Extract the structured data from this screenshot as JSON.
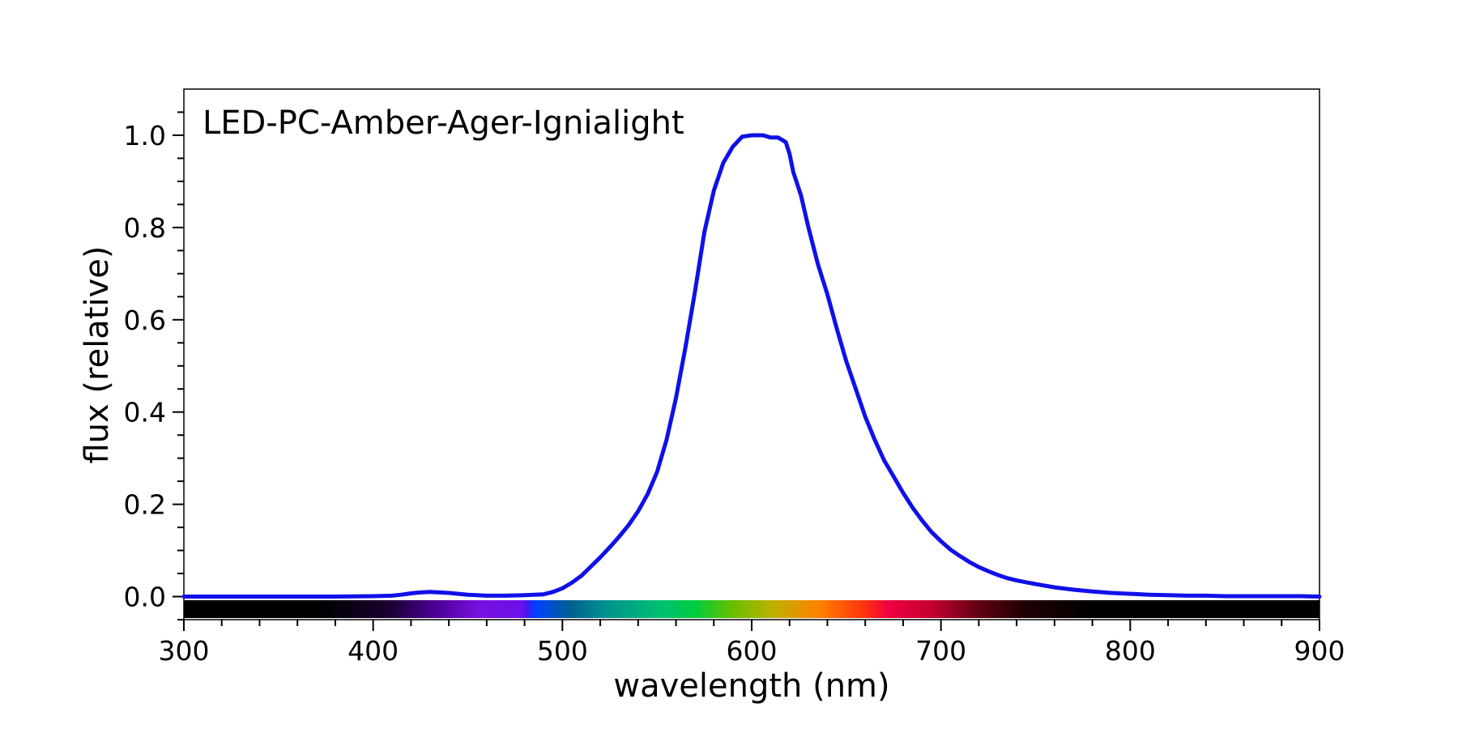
{
  "chart_data": {
    "type": "line",
    "title": "LED-PC-Amber-Ager-Ignialight",
    "xlabel": "wavelength (nm)",
    "ylabel": "flux (relative)",
    "xlim": [
      300,
      900
    ],
    "ylim": [
      -0.05,
      1.1
    ],
    "x_ticks": [
      300,
      400,
      500,
      600,
      700,
      800,
      900
    ],
    "x_tick_labels": [
      "300",
      "400",
      "500",
      "600",
      "700",
      "800",
      "900"
    ],
    "y_ticks": [
      0.0,
      0.2,
      0.4,
      0.6,
      0.8,
      1.0
    ],
    "y_tick_labels": [
      "0.0",
      "0.2",
      "0.4",
      "0.6",
      "0.8",
      "1.0"
    ],
    "grid": false,
    "line_color": "#1010e8",
    "spectrum_bar": true,
    "series": [
      {
        "name": "LED-PC-Amber-Ager-Ignialight",
        "x": [
          300,
          320,
          340,
          360,
          380,
          400,
          410,
          415,
          420,
          425,
          430,
          435,
          440,
          445,
          450,
          460,
          470,
          480,
          490,
          495,
          500,
          505,
          510,
          515,
          520,
          525,
          530,
          535,
          540,
          545,
          550,
          555,
          560,
          565,
          570,
          575,
          580,
          585,
          590,
          595,
          600,
          603,
          606,
          610,
          614,
          618,
          620,
          622,
          626,
          630,
          635,
          640,
          645,
          650,
          655,
          660,
          665,
          670,
          675,
          680,
          685,
          690,
          695,
          700,
          705,
          710,
          715,
          720,
          725,
          730,
          735,
          740,
          750,
          760,
          770,
          780,
          790,
          800,
          810,
          820,
          830,
          840,
          850,
          860,
          870,
          880,
          890,
          900
        ],
        "values": [
          0.0,
          0.0,
          0.0,
          0.0,
          0.0,
          0.001,
          0.002,
          0.004,
          0.007,
          0.009,
          0.01,
          0.009,
          0.008,
          0.006,
          0.004,
          0.002,
          0.002,
          0.003,
          0.005,
          0.01,
          0.018,
          0.03,
          0.045,
          0.065,
          0.085,
          0.107,
          0.13,
          0.155,
          0.185,
          0.222,
          0.27,
          0.34,
          0.43,
          0.54,
          0.66,
          0.79,
          0.88,
          0.94,
          0.975,
          0.997,
          1.0,
          1.0,
          1.0,
          0.995,
          0.995,
          0.985,
          0.96,
          0.92,
          0.87,
          0.8,
          0.72,
          0.655,
          0.58,
          0.51,
          0.45,
          0.39,
          0.34,
          0.295,
          0.26,
          0.225,
          0.193,
          0.165,
          0.14,
          0.12,
          0.102,
          0.088,
          0.075,
          0.064,
          0.055,
          0.047,
          0.04,
          0.035,
          0.027,
          0.02,
          0.015,
          0.011,
          0.008,
          0.006,
          0.004,
          0.003,
          0.002,
          0.002,
          0.001,
          0.001,
          0.001,
          0.001,
          0.001,
          0.0
        ]
      }
    ]
  }
}
